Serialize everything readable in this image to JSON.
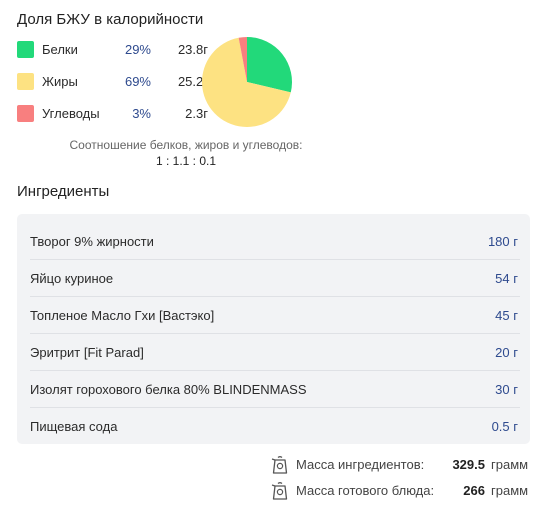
{
  "macros": {
    "title": "Доля БЖУ в калорийности",
    "items": [
      {
        "name": "Белки",
        "percent": "29%",
        "grams": "23.8г",
        "color": "#22d97a"
      },
      {
        "name": "Жиры",
        "percent": "69%",
        "grams": "25.2г",
        "color": "#fde282"
      },
      {
        "name": "Углеводы",
        "percent": "3%",
        "grams": "2.3г",
        "color": "#f87f7f"
      }
    ],
    "ratio_caption": "Соотношение белков, жиров и углеводов:",
    "ratio_value": "1 : 1.1 : 0.1"
  },
  "chart_data": {
    "type": "pie",
    "slices": [
      {
        "label": "Белки",
        "value": 29,
        "color": "#22d97a"
      },
      {
        "label": "Жиры",
        "value": 69,
        "color": "#fde282"
      },
      {
        "label": "Углеводы",
        "value": 3,
        "color": "#f87f7f"
      }
    ]
  },
  "ingredients": {
    "title": "Ингредиенты",
    "items": [
      {
        "name": "Творог 9% жирности",
        "amount": "180 г"
      },
      {
        "name": "Яйцо куриное",
        "amount": "54 г"
      },
      {
        "name": "Топленое Масло Гхи [Вастэко]",
        "amount": "45 г"
      },
      {
        "name": "Эритрит [Fit Parad]",
        "amount": "20 г"
      },
      {
        "name": "Изолят горохового белка 80% BLINDENMASS",
        "amount": "30 г"
      },
      {
        "name": "Пищевая сода",
        "amount": "0.5 г"
      }
    ]
  },
  "totals": {
    "ingredients_label": "Масса ингредиентов:",
    "ingredients_value": "329.5",
    "ingredients_unit": "грамм",
    "dish_label": "Масса готового блюда:",
    "dish_value": "266",
    "dish_unit": "грамм",
    "icon": "kettle-icon"
  }
}
